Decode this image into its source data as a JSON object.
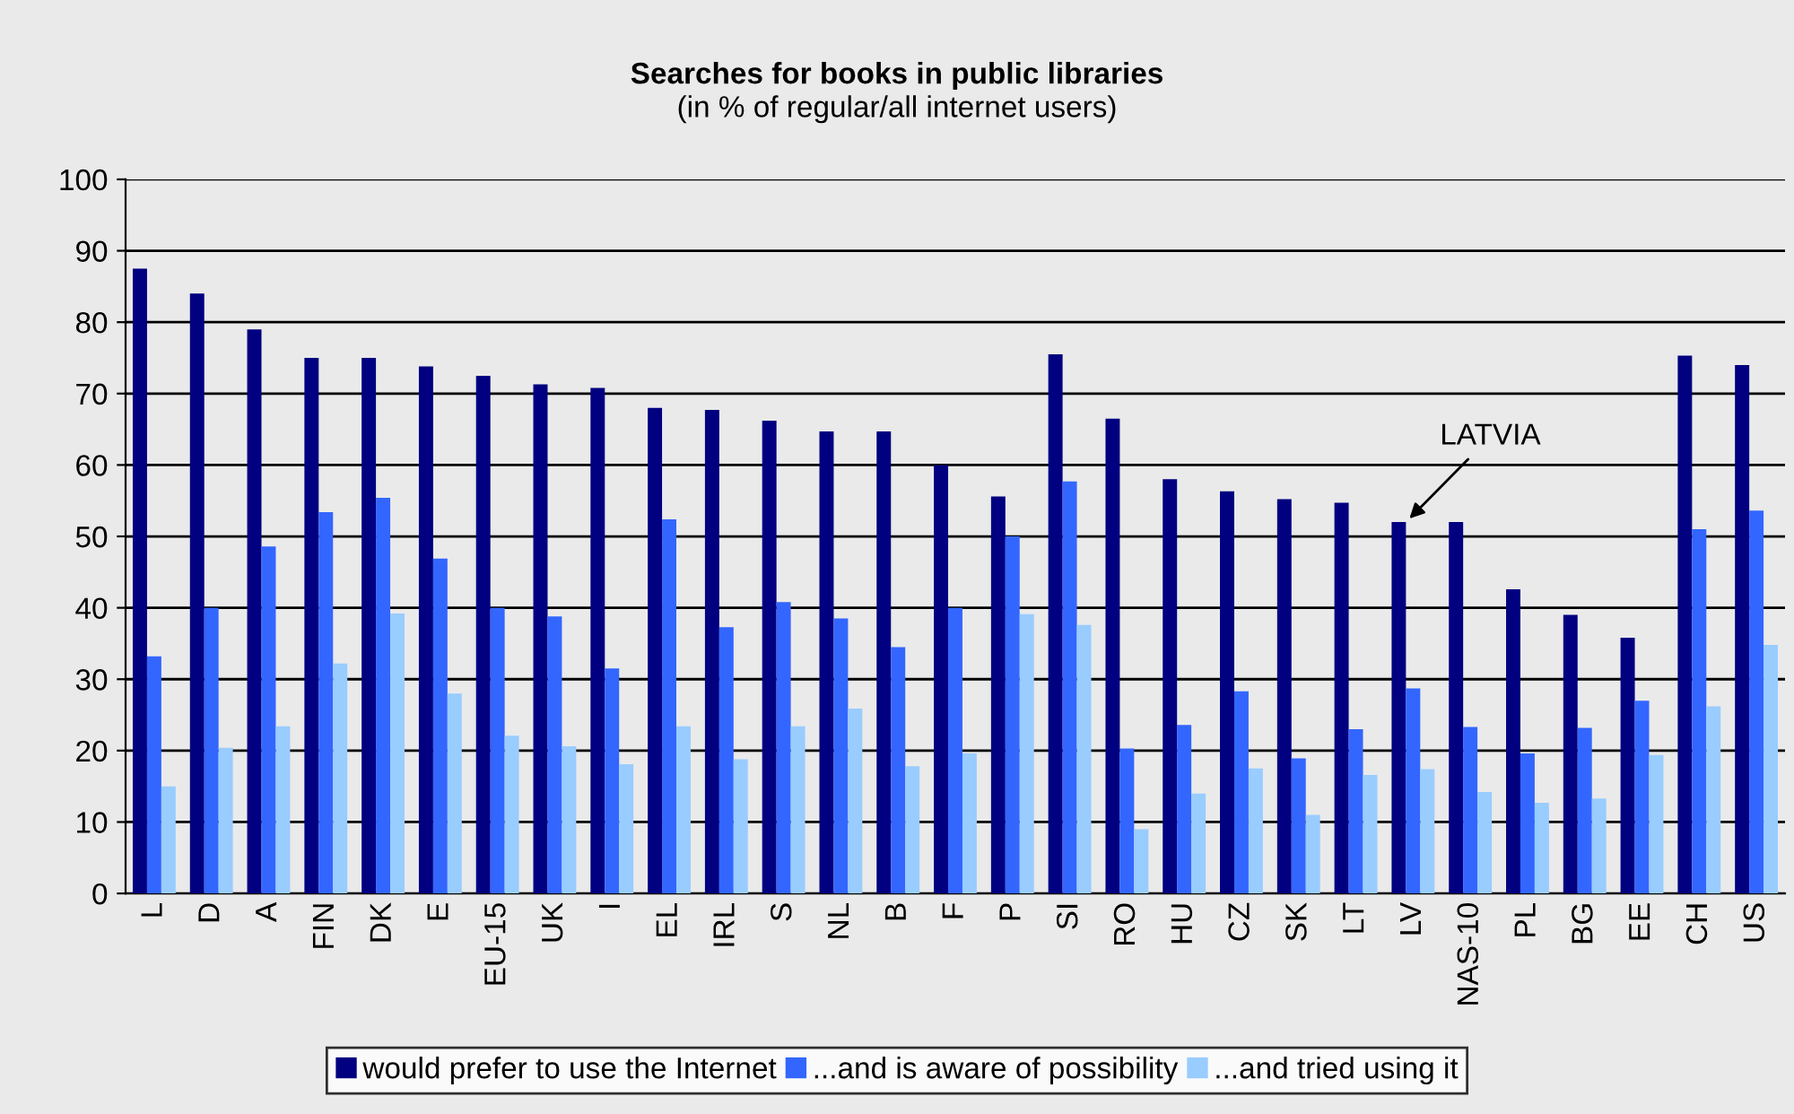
{
  "chart_data": {
    "type": "bar",
    "title": "Searches for books in public libraries",
    "subtitle": "(in % of regular/all internet users)",
    "categories": [
      "L",
      "D",
      "A",
      "FIN",
      "DK",
      "E",
      "EU-15",
      "UK",
      "I",
      "EL",
      "IRL",
      "S",
      "NL",
      "B",
      "F",
      "P",
      "SI",
      "RO",
      "HU",
      "CZ",
      "SK",
      "LT",
      "LV",
      "NAS-10",
      "PL",
      "BG",
      "EE",
      "CH",
      "US"
    ],
    "series": [
      {
        "name": "would prefer to use the Internet",
        "color": "#000080",
        "values": [
          87.5,
          84,
          79,
          75,
          75,
          73.8,
          72.5,
          71.3,
          70.8,
          68,
          67.7,
          66.2,
          64.7,
          64.7,
          60,
          55.6,
          75.5,
          66.5,
          58,
          56.3,
          55.2,
          54.7,
          52,
          52,
          42.6,
          39,
          35.8,
          75.3,
          74
        ]
      },
      {
        "name": "...and is aware of possibility",
        "color": "#3366ff",
        "values": [
          33.2,
          40,
          48.6,
          53.4,
          55.4,
          46.9,
          40,
          38.8,
          31.5,
          52.4,
          37.3,
          40.8,
          38.5,
          34.5,
          40,
          50,
          57.7,
          20.3,
          23.6,
          28.3,
          18.9,
          23,
          28.7,
          23.3,
          19.6,
          23.2,
          27,
          51,
          53.6
        ]
      },
      {
        "name": "...and tried using it",
        "color": "#99ccff",
        "values": [
          15,
          20.4,
          23.4,
          32.2,
          39.2,
          28,
          22.1,
          20.6,
          18.1,
          23.4,
          18.8,
          23.4,
          25.9,
          17.8,
          19.6,
          39.1,
          37.6,
          9,
          14,
          17.5,
          11,
          16.6,
          17.4,
          14.2,
          12.7,
          13.3,
          19.4,
          26.2,
          34.8
        ]
      }
    ],
    "ylim": [
      0,
      100
    ],
    "yticks": [
      0,
      10,
      20,
      30,
      40,
      50,
      60,
      70,
      80,
      90,
      100
    ],
    "grid": "y",
    "legend": "bottom",
    "annotations": [
      {
        "text": "LATVIA",
        "x": "LV",
        "y": 52
      }
    ]
  }
}
